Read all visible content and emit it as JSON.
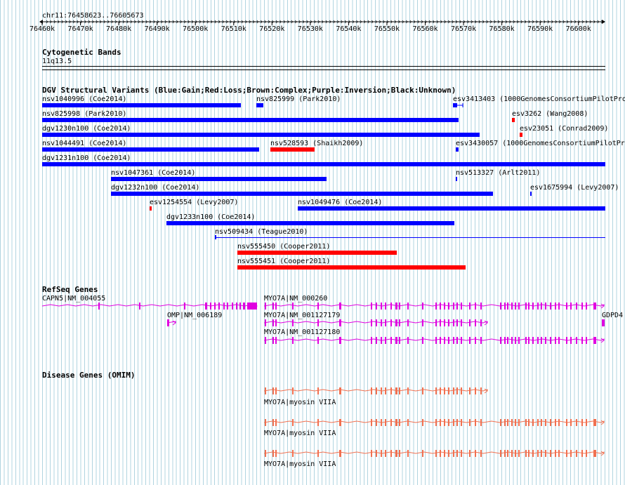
{
  "region": "chr11:76458623..76605673",
  "ruler": {
    "ticks": [
      "76460k",
      "76470k",
      "76480k",
      "76490k",
      "76500k",
      "76510k",
      "76520k",
      "76530k",
      "76540k",
      "76550k",
      "76560k",
      "76570k",
      "76580k",
      "76590k",
      "76600k"
    ]
  },
  "colors": {
    "gain": "#0000ff",
    "loss": "#ff0000",
    "refseq": "#e000e0",
    "omim": "#f07050",
    "grid": "#b0d4e0"
  },
  "cytoband": {
    "title": "Cytogenetic Bands",
    "band": "11q13.5"
  },
  "dgv": {
    "title": "DGV Structural Variants (Blue:Gain;Red:Loss;Brown:Complex;Purple:Inversion;Black:Unknown)",
    "variants": [
      {
        "label": "nsv1040996 (Coe2014)",
        "type": "gain"
      },
      {
        "label": "nsv825999 (Park2010)",
        "type": "gain"
      },
      {
        "label": "esv3413403 (1000GenomesConsortiumPilotPro",
        "type": "gain"
      },
      {
        "label": "nsv825998 (Park2010)",
        "type": "gain"
      },
      {
        "label": "esv3262 (Wang2008)",
        "type": "loss"
      },
      {
        "label": "dgv1230n100 (Coe2014)",
        "type": "gain"
      },
      {
        "label": "esv23051 (Conrad2009)",
        "type": "loss"
      },
      {
        "label": "nsv1044491 (Coe2014)",
        "type": "gain"
      },
      {
        "label": "nsv528593 (Shaikh2009)",
        "type": "loss"
      },
      {
        "label": "esv3430057 (1000GenomesConsortiumPilotPro",
        "type": "gain"
      },
      {
        "label": "dgv1231n100 (Coe2014)",
        "type": "gain"
      },
      {
        "label": "nsv1047361 (Coe2014)",
        "type": "gain"
      },
      {
        "label": "nsv513327 (Arlt2011)",
        "type": "gain"
      },
      {
        "label": "dgv1232n100 (Coe2014)",
        "type": "gain"
      },
      {
        "label": "esv1675994 (Levy2007)",
        "type": "gain"
      },
      {
        "label": "esv1254554 (Levy2007)",
        "type": "loss"
      },
      {
        "label": "nsv1049476 (Coe2014)",
        "type": "gain"
      },
      {
        "label": "dgv1233n100 (Coe2014)",
        "type": "gain"
      },
      {
        "label": "nsv509434 (Teague2010)",
        "type": "gain"
      },
      {
        "label": "nsv555450 (Cooper2011)",
        "type": "loss"
      },
      {
        "label": "nsv555451 (Cooper2011)",
        "type": "loss"
      }
    ]
  },
  "refseq": {
    "title": "RefSeq Genes",
    "genes": [
      {
        "label": "CAPN5|NM_004055"
      },
      {
        "label": "MYO7A|NM_000260"
      },
      {
        "label": "OMP|NM_006189"
      },
      {
        "label": "MYO7A|NM_001127179"
      },
      {
        "label": "GDPD4"
      },
      {
        "label": "MYO7A|NM_001127180"
      }
    ]
  },
  "omim": {
    "title": "Disease Genes (OMIM)",
    "genes": [
      {
        "label": "MYO7A|myosin VIIA"
      },
      {
        "label": "MYO7A|myosin VIIA"
      },
      {
        "label": "MYO7A|myosin VIIA"
      }
    ]
  }
}
